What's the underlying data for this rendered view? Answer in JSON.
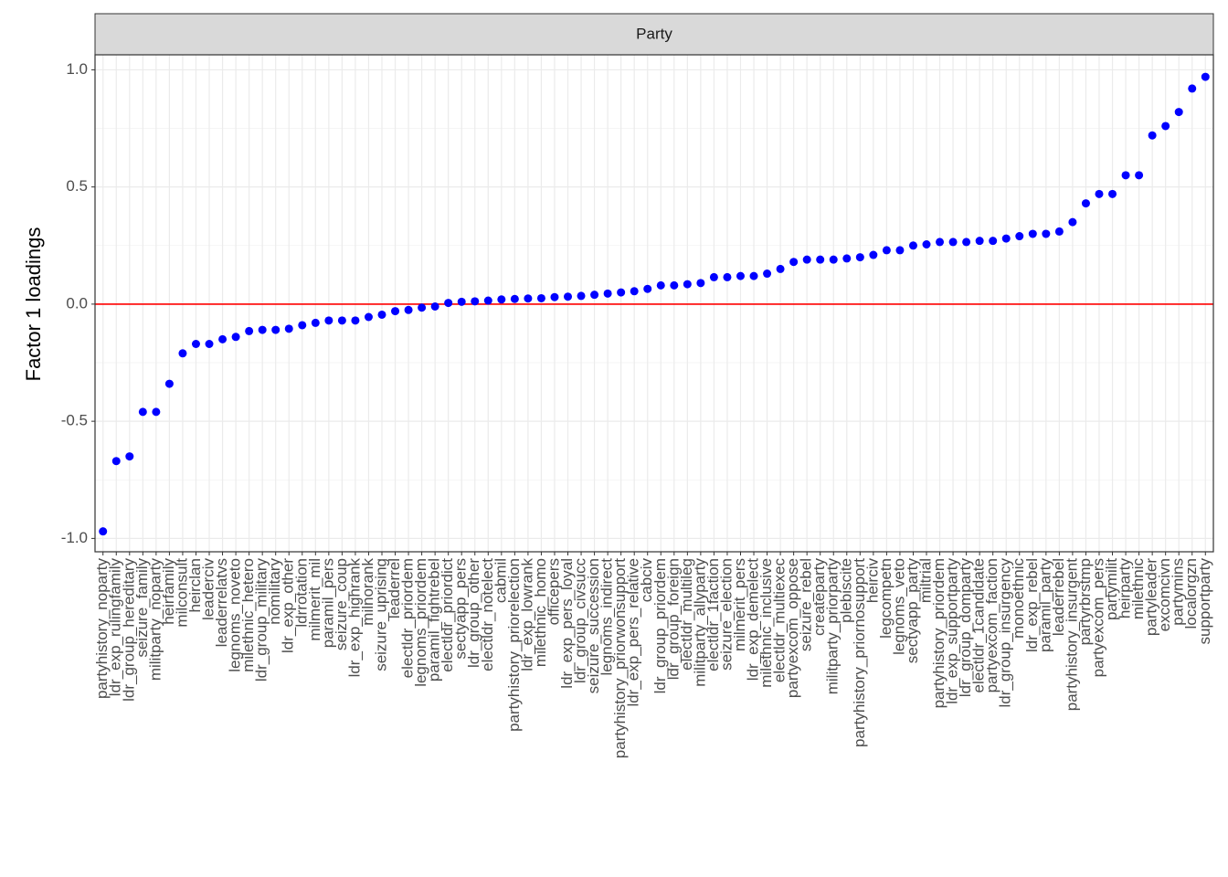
{
  "chart_data": {
    "type": "scatter",
    "facet_label": "Party",
    "y_label": "Factor 1 loadings",
    "color": "#0000ff",
    "hline": 0,
    "hline_color": "#ff0000",
    "grid": true,
    "ylim": [
      -1.057,
      1.064
    ],
    "yticks": [
      {
        "value": -1,
        "label": "-1.0"
      },
      {
        "value": -0.5,
        "label": "-0.5"
      },
      {
        "value": 0,
        "label": "0.0"
      },
      {
        "value": 0.5,
        "label": "0.5"
      },
      {
        "value": 1,
        "label": "1.0"
      }
    ],
    "categories": [
      "partyhistory_noparty",
      "ldr_exp_rulingfamily",
      "ldr_group_hereditary",
      "seizure_family",
      "militparty_noparty",
      "heirfamily",
      "milconsult",
      "heirclan",
      "leaderciv",
      "leaderrelatvs",
      "legnoms_noveto",
      "milethnic_hetero",
      "ldr_group_military",
      "nomilitary",
      "ldr_exp_other",
      "ldrrotation",
      "milmerit_mil",
      "paramil_pers",
      "seizure_coup",
      "ldr_exp_highrank",
      "milnorank",
      "seizure_uprising",
      "leaderrel",
      "electldr_priordem",
      "legnoms_priordem",
      "paramil_fightrebel",
      "electldr_priordict",
      "sectyapp_pers",
      "ldr_group_other",
      "electldr_notelect",
      "cabmil",
      "partyhistory_priorelection",
      "ldr_exp_lowrank",
      "milethnic_homo",
      "officepers",
      "ldr_exp_pers_loyal",
      "ldr_group_civsucc",
      "seizure_succession",
      "legnoms_indirect",
      "partyhistory_priorwonsupport",
      "ldr_exp_pers_relative",
      "cabciv",
      "ldr_group_priordem",
      "ldr_group_foreign",
      "electldr_multileg",
      "militparty_allyparty",
      "electldr_1faction",
      "seizure_election",
      "milmerit_pers",
      "ldr_exp_demelect",
      "milethnic_inclusive",
      "electldr_multiexec",
      "partyexcom_oppose",
      "seizure_rebel",
      "createparty",
      "militparty_priorparty",
      "plebiscite",
      "partyhistory_priornosupport",
      "heirciv",
      "legcompetn",
      "legnoms_veto",
      "sectyapp_party",
      "miltrial",
      "partyhistory_priordem",
      "ldr_exp_supportparty",
      "ldr_group_domparty",
      "electldr_1candidate",
      "partyexcom_faction",
      "ldr_group_insurgency",
      "monoethnic",
      "ldr_exp_rebel",
      "paramil_party",
      "leaderrebel",
      "partyhistory_insurgent",
      "partyrbrstmp",
      "partyexcom_pers",
      "partymilit",
      "heirparty",
      "milethnic",
      "partyleader",
      "excomcivn",
      "partymins",
      "localorgzn",
      "supportparty"
    ],
    "values": [
      -0.97,
      -0.67,
      -0.65,
      -0.46,
      -0.46,
      -0.34,
      -0.21,
      -0.17,
      -0.17,
      -0.15,
      -0.14,
      -0.115,
      -0.11,
      -0.11,
      -0.105,
      -0.09,
      -0.08,
      -0.07,
      -0.07,
      -0.07,
      -0.055,
      -0.045,
      -0.03,
      -0.025,
      -0.015,
      -0.01,
      0.005,
      0.01,
      0.012,
      0.015,
      0.02,
      0.022,
      0.024,
      0.025,
      0.03,
      0.032,
      0.035,
      0.04,
      0.045,
      0.05,
      0.055,
      0.065,
      0.08,
      0.08,
      0.085,
      0.09,
      0.115,
      0.115,
      0.12,
      0.12,
      0.13,
      0.15,
      0.18,
      0.19,
      0.19,
      0.19,
      0.195,
      0.2,
      0.21,
      0.23,
      0.23,
      0.25,
      0.255,
      0.265,
      0.265,
      0.265,
      0.27,
      0.27,
      0.28,
      0.29,
      0.3,
      0.3,
      0.31,
      0.35,
      0.43,
      0.47,
      0.47,
      0.55,
      0.55,
      0.72,
      0.76,
      0.82,
      0.92,
      0.97
    ]
  }
}
